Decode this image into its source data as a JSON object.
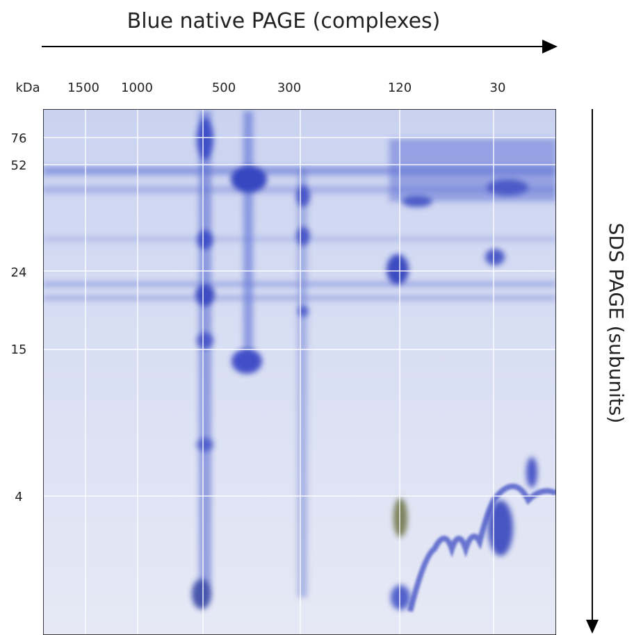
{
  "title": "Blue native  PAGE (complexes)",
  "top_axis": {
    "unit": "kDa",
    "labels": [
      "1500",
      "1000",
      "500",
      "300",
      "120",
      "30"
    ]
  },
  "left_axis": {
    "labels": [
      "76",
      "52",
      "24",
      "15",
      "4"
    ]
  },
  "right_title": "SDS  PAGE (subunits)"
}
